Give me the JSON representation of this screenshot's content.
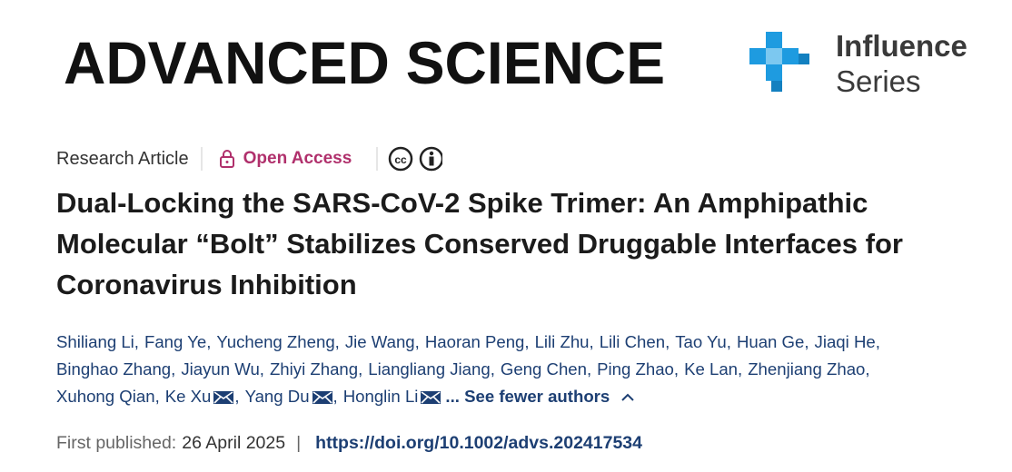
{
  "header": {
    "journal": "ADVANCED SCIENCE",
    "series_line1": "Influence",
    "series_line2": "Series"
  },
  "article": {
    "type": "Research Article",
    "access": "Open Access",
    "title_lines": [
      "Dual-Locking the SARS-CoV-2 Spike Trimer: An Amphipathic",
      "Molecular “Bolt” Stabilizes Conserved Druggable Interfaces for",
      "Coronavirus Inhibition"
    ],
    "author_lines": [
      [
        {
          "name": "Shiliang Li"
        },
        {
          "name": "Fang Ye"
        },
        {
          "name": "Yucheng Zheng"
        },
        {
          "name": "Jie Wang"
        },
        {
          "name": "Haoran Peng"
        },
        {
          "name": "Lili Zhu"
        },
        {
          "name": "Lili Chen"
        },
        {
          "name": "Tao Yu"
        },
        {
          "name": "Huan Ge"
        },
        {
          "name": "Jiaqi He"
        }
      ],
      [
        {
          "name": "Binghao Zhang"
        },
        {
          "name": "Jiayun Wu"
        },
        {
          "name": "Zhiyi Zhang"
        },
        {
          "name": "Liangliang Jiang"
        },
        {
          "name": "Geng Chen"
        },
        {
          "name": "Ping Zhao"
        },
        {
          "name": "Ke Lan"
        },
        {
          "name": "Zhenjiang Zhao"
        }
      ],
      [
        {
          "name": "Xuhong Qian"
        },
        {
          "name": "Ke Xu",
          "email": true
        },
        {
          "name": "Yang Du",
          "email": true
        },
        {
          "name": "Honglin Li",
          "email": true
        }
      ]
    ],
    "separator": ",",
    "see_fewer": "... See fewer authors",
    "published_label": "First published:",
    "published_date": "26 April 2025",
    "divider": "|",
    "doi": "https://doi.org/10.1002/advs.202417534"
  }
}
